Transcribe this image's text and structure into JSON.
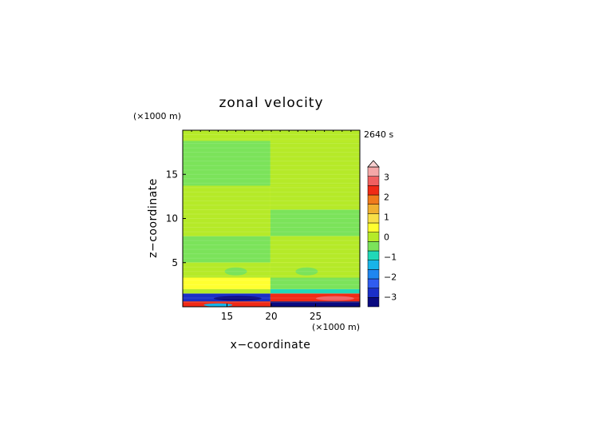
{
  "chart_data": {
    "type": "heatmap",
    "title": "zonal velocity",
    "time_label": "2640 s",
    "xlabel": "x−coordinate",
    "ylabel": "z−coordinate",
    "x_unit": "(×1000 m)",
    "y_unit": "(×1000 m)",
    "xlim": [
      10,
      30
    ],
    "ylim": [
      0,
      20
    ],
    "x_ticks": [
      15,
      20,
      25
    ],
    "x_tick_labels": [
      "15",
      "20",
      "25"
    ],
    "y_ticks": [
      5,
      10,
      15
    ],
    "y_tick_labels": [
      "5",
      "10",
      "15"
    ],
    "colorbar": {
      "levels": [
        -3.5,
        -3,
        -2.5,
        -2,
        -1.5,
        -1,
        -0.5,
        0,
        0.5,
        1,
        1.5,
        2,
        2.5,
        3,
        3.5
      ],
      "colors": [
        "#0a0a80",
        "#1a2fc8",
        "#2f5cf0",
        "#1f86f0",
        "#18b4e8",
        "#20d8b8",
        "#7be35a",
        "#b5ea28",
        "#ffff30",
        "#f8e048",
        "#f0b030",
        "#f07a1c",
        "#f02a16",
        "#f06060",
        "#f4a8a8"
      ],
      "tick_values": [
        -3,
        -2,
        -1,
        0,
        1,
        2,
        3
      ],
      "tick_labels": [
        "−3",
        "−2",
        "−1",
        "0",
        "1",
        "2",
        "3"
      ],
      "extend": "max"
    },
    "field_description_bands": [
      {
        "z_range": [
          18.8,
          20
        ],
        "left": 0.1,
        "right": 0.1
      },
      {
        "z_range": [
          16.2,
          18.8
        ],
        "left": -0.1,
        "right": 0.1
      },
      {
        "z_range": [
          13.7,
          16.2
        ],
        "left": -0.1,
        "right": 0.1
      },
      {
        "z_range": [
          11.0,
          13.7
        ],
        "left": 0.1,
        "right": 0.1
      },
      {
        "z_range": [
          8.0,
          11.0
        ],
        "left": 0.1,
        "right": -0.1
      },
      {
        "z_range": [
          5.0,
          8.0
        ],
        "left": -0.1,
        "right": 0.1
      },
      {
        "z_range": [
          3.3,
          5.0
        ],
        "left": 0.1,
        "right": 0.1
      },
      {
        "z_range": [
          2.0,
          3.3
        ],
        "left": 0.6,
        "right": -0.4
      },
      {
        "z_range": [
          1.5,
          2.0
        ],
        "left": 0.4,
        "right": -0.9
      },
      {
        "z_range": [
          0.6,
          1.5
        ],
        "left": -3.0,
        "right": 2.8
      },
      {
        "z_range": [
          0.0,
          0.6
        ],
        "left": 2.5,
        "right": -3.2
      }
    ]
  }
}
